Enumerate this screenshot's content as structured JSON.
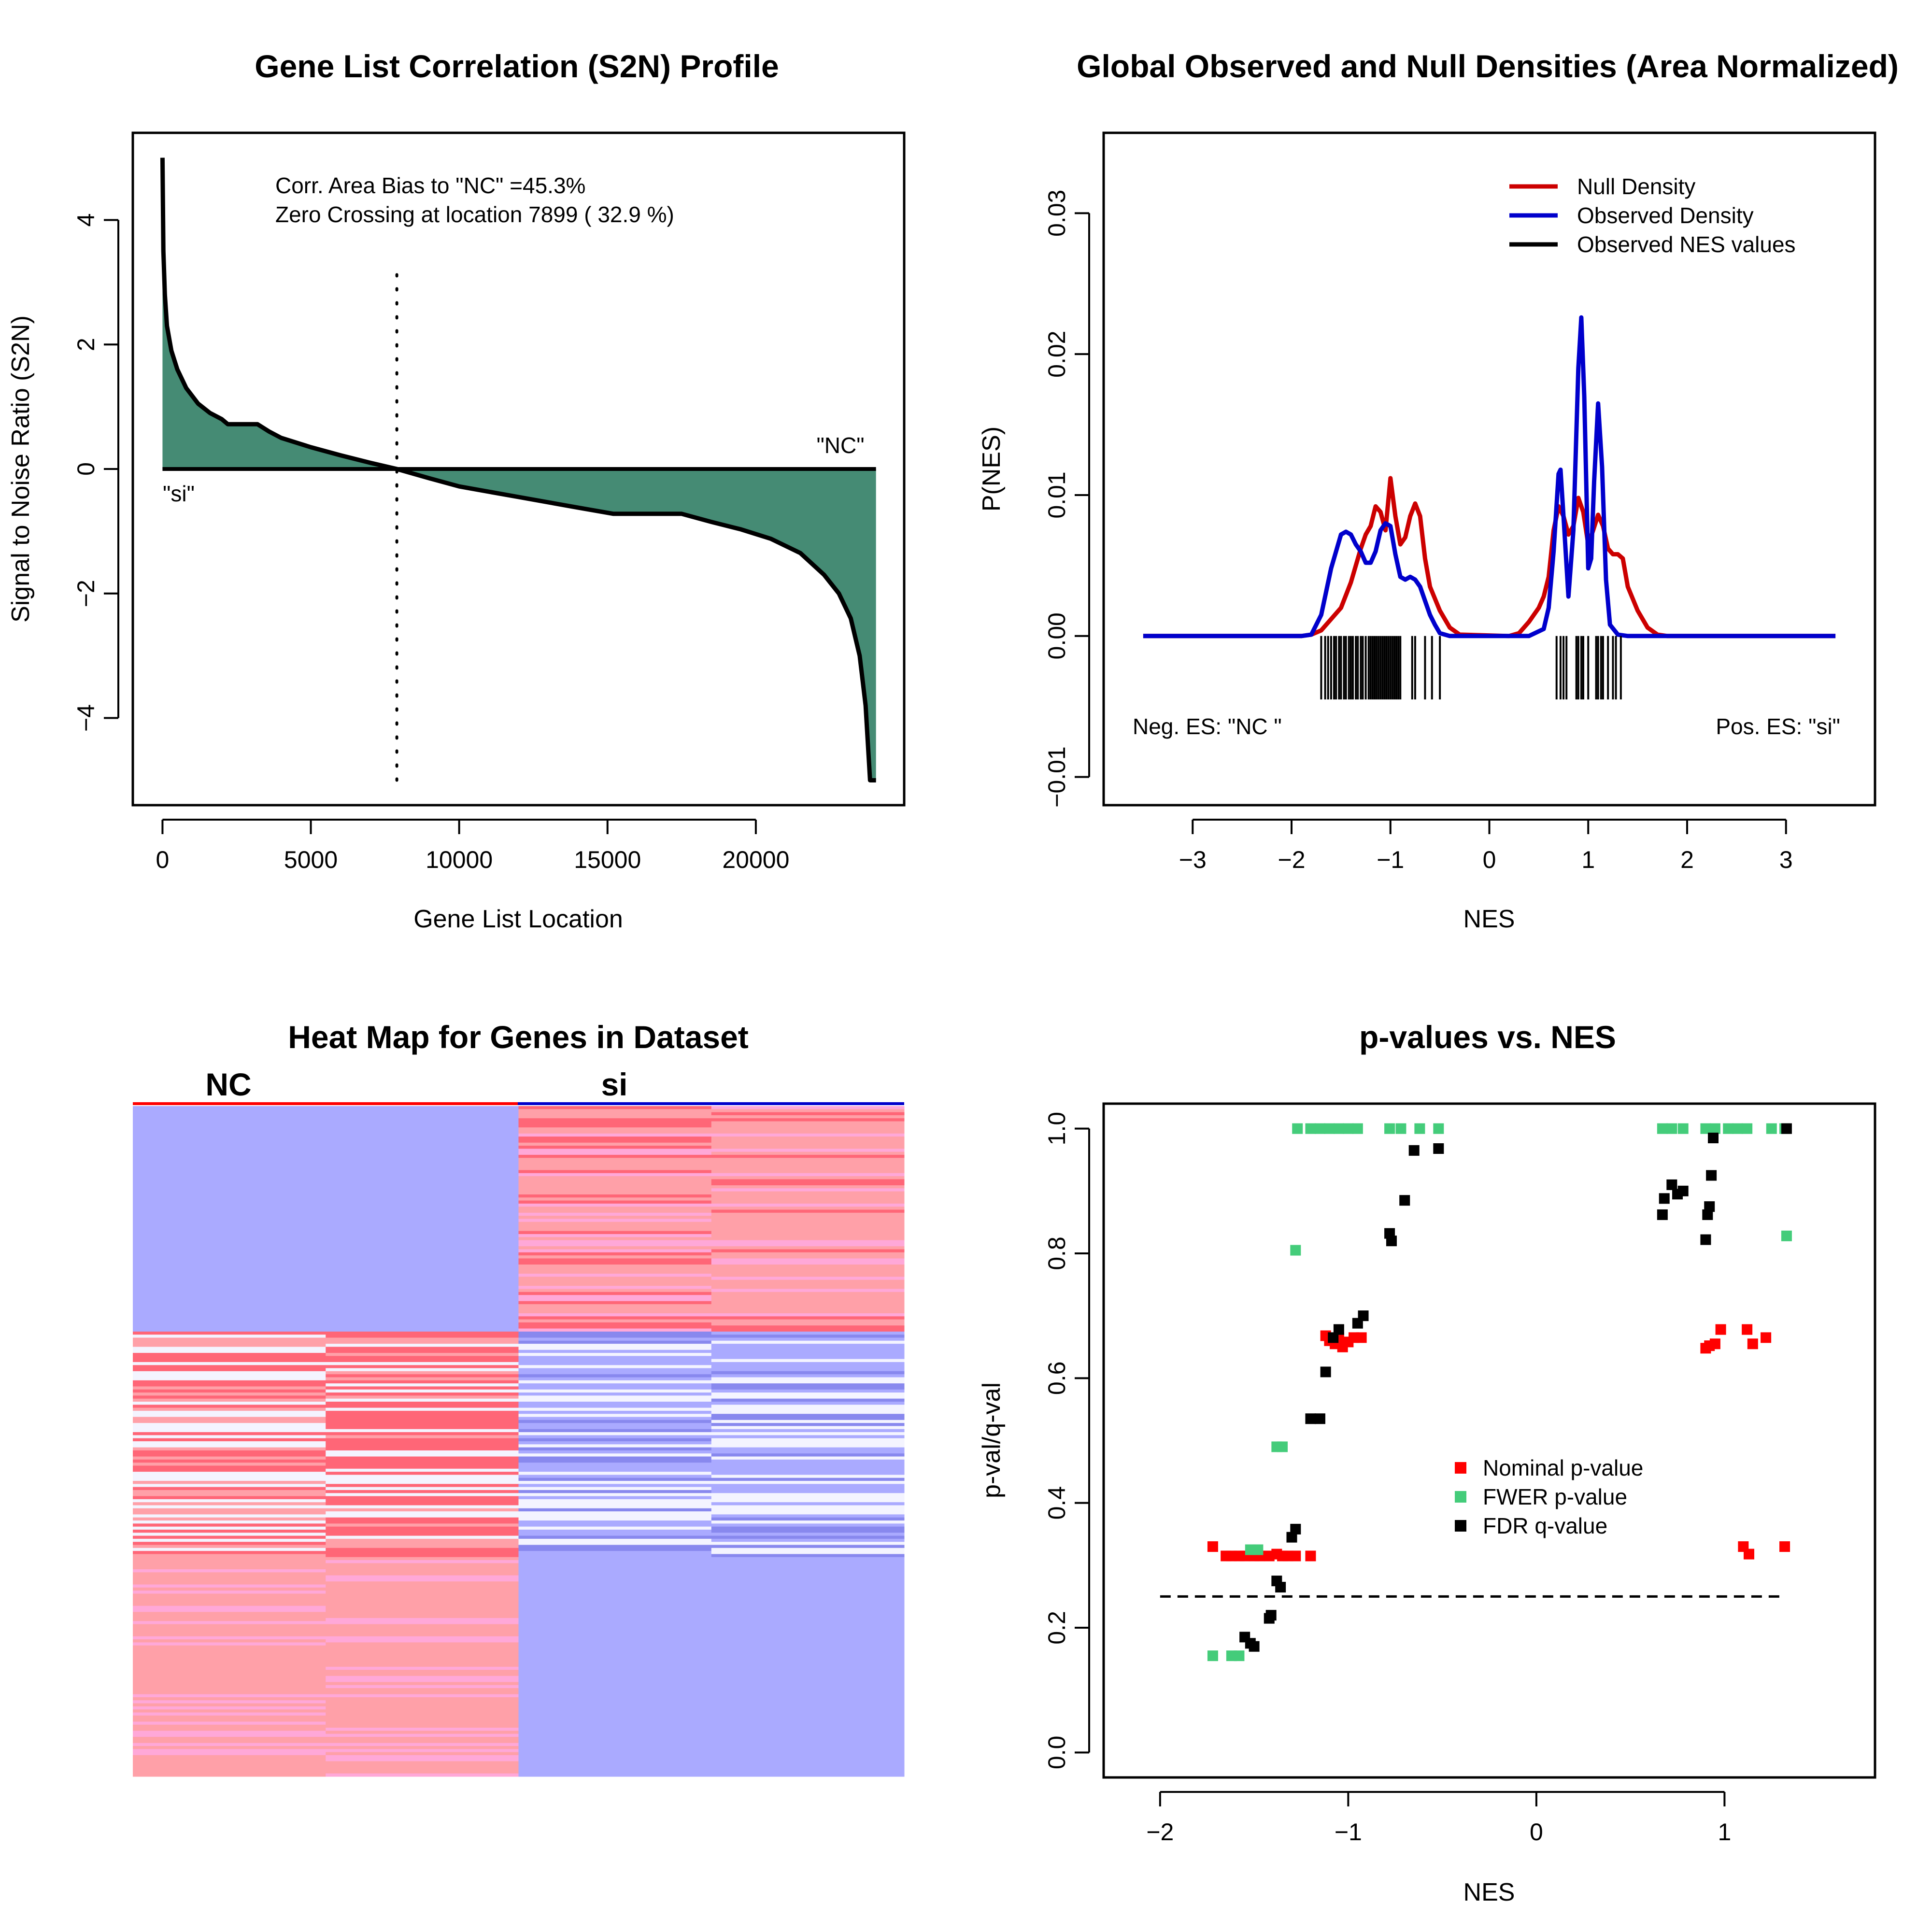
{
  "chart_data": [
    {
      "type": "area",
      "title": "Gene List Correlation (S2N) Profile",
      "xlabel": "Gene List Location",
      "ylabel": "Signal to Noise Ratio (S2N)",
      "xlim": [
        -1000,
        25000
      ],
      "ylim": [
        -5.4,
        5.4
      ],
      "xticks": [
        0,
        5000,
        10000,
        15000,
        20000
      ],
      "yticks": [
        -4,
        -2,
        0,
        2,
        4
      ],
      "annotations": [
        "Corr. Area Bias to \"NC\" =45.3%",
        "Zero Crossing at location  7899  ( 32.9  %)"
      ],
      "end_labels": {
        "left": "\"si\"",
        "right": "\"NC\""
      },
      "zero_crossing": 7899,
      "x": [
        0,
        30,
        80,
        150,
        300,
        500,
        800,
        1200,
        1600,
        2000,
        2200,
        2500,
        3000,
        3200,
        3600,
        4000,
        5000,
        6000,
        7000,
        7899,
        9000,
        10000,
        12000,
        14000,
        15200,
        16000,
        17500,
        18500,
        19500,
        20500,
        21500,
        22300,
        22800,
        23200,
        23500,
        23700,
        23800,
        23850,
        23900,
        24050
      ],
      "values": [
        5.0,
        3.5,
        2.8,
        2.3,
        1.9,
        1.6,
        1.3,
        1.05,
        0.9,
        0.8,
        0.72,
        0.72,
        0.72,
        0.72,
        0.6,
        0.5,
        0.35,
        0.22,
        0.1,
        0.0,
        -0.15,
        -0.28,
        -0.45,
        -0.62,
        -0.72,
        -0.72,
        -0.72,
        -0.85,
        -0.97,
        -1.12,
        -1.35,
        -1.7,
        -2.0,
        -2.4,
        -3.0,
        -3.8,
        -4.6,
        -5.0,
        -5.0,
        -5.0
      ],
      "fill_color": "#458b74"
    },
    {
      "type": "line",
      "title": "Global Observed and Null Densities (Area Normalized)",
      "xlabel": "NES",
      "ylabel": "P(NES)",
      "xlim": [
        -3.9,
        3.9
      ],
      "ylim": [
        -0.012,
        0.0357
      ],
      "xticks": [
        -3,
        -2,
        -1,
        0,
        1,
        2,
        3
      ],
      "yticks": [
        -0.01,
        0.0,
        0.01,
        0.02,
        0.03
      ],
      "legend": [
        "Null Density",
        "Observed Density",
        "Observed NES values"
      ],
      "legend_position": "top-right",
      "series": [
        {
          "name": "Null Density",
          "color": "#cc0000",
          "x": [
            -3.5,
            -1.9,
            -1.8,
            -1.7,
            -1.6,
            -1.5,
            -1.4,
            -1.3,
            -1.25,
            -1.2,
            -1.15,
            -1.1,
            -1.05,
            -1.0,
            -0.95,
            -0.9,
            -0.85,
            -0.8,
            -0.75,
            -0.7,
            -0.65,
            -0.6,
            -0.5,
            -0.4,
            -0.3,
            0.2,
            0.3,
            0.4,
            0.5,
            0.55,
            0.6,
            0.65,
            0.7,
            0.75,
            0.8,
            0.85,
            0.9,
            0.95,
            1.0,
            1.05,
            1.1,
            1.15,
            1.2,
            1.25,
            1.3,
            1.35,
            1.4,
            1.5,
            1.6,
            1.7,
            1.8,
            3.5
          ],
          "y": [
            0,
            0,
            0.0001,
            0.0004,
            0.0012,
            0.002,
            0.0038,
            0.0062,
            0.0072,
            0.0078,
            0.0092,
            0.0088,
            0.0075,
            0.0112,
            0.0085,
            0.0065,
            0.007,
            0.0085,
            0.0094,
            0.0085,
            0.0055,
            0.0035,
            0.0018,
            0.0006,
            0.0001,
            0,
            0.0002,
            0.001,
            0.002,
            0.0028,
            0.0042,
            0.0075,
            0.0092,
            0.0085,
            0.0072,
            0.0078,
            0.0098,
            0.0088,
            0.0065,
            0.0075,
            0.0086,
            0.0078,
            0.0062,
            0.0058,
            0.0058,
            0.0055,
            0.0035,
            0.0018,
            0.0006,
            0.0001,
            0,
            0
          ]
        },
        {
          "name": "Observed Density",
          "color": "#0000cc",
          "x": [
            -3.5,
            -1.9,
            -1.8,
            -1.7,
            -1.6,
            -1.5,
            -1.45,
            -1.4,
            -1.35,
            -1.3,
            -1.25,
            -1.2,
            -1.15,
            -1.1,
            -1.05,
            -1.0,
            -0.95,
            -0.9,
            -0.85,
            -0.8,
            -0.75,
            -0.7,
            -0.65,
            -0.6,
            -0.55,
            -0.5,
            -0.4,
            -0.3,
            0.4,
            0.55,
            0.6,
            0.65,
            0.7,
            0.72,
            0.75,
            0.8,
            0.85,
            0.9,
            0.93,
            0.96,
            1.0,
            1.03,
            1.06,
            1.1,
            1.14,
            1.18,
            1.22,
            1.3,
            1.4,
            1.5,
            3.5
          ],
          "y": [
            0,
            0,
            0.0001,
            0.0015,
            0.0048,
            0.0072,
            0.0074,
            0.0072,
            0.0065,
            0.006,
            0.0052,
            0.0052,
            0.006,
            0.0075,
            0.008,
            0.0078,
            0.0058,
            0.0042,
            0.004,
            0.0042,
            0.004,
            0.0035,
            0.0025,
            0.0015,
            0.0008,
            0.0002,
            0,
            0,
            0,
            0.0005,
            0.002,
            0.006,
            0.0115,
            0.0118,
            0.0085,
            0.0028,
            0.0075,
            0.019,
            0.0226,
            0.017,
            0.0048,
            0.0055,
            0.011,
            0.0165,
            0.012,
            0.004,
            0.0008,
            0.0001,
            0,
            0,
            0
          ]
        }
      ],
      "rug": [
        -1.7,
        -1.66,
        -1.63,
        -1.6,
        -1.57,
        -1.55,
        -1.52,
        -1.5,
        -1.47,
        -1.45,
        -1.42,
        -1.4,
        -1.38,
        -1.35,
        -1.33,
        -1.3,
        -1.28,
        -1.25,
        -1.22,
        -1.2,
        -1.18,
        -1.16,
        -1.14,
        -1.12,
        -1.1,
        -1.08,
        -1.06,
        -1.04,
        -1.02,
        -1.0,
        -0.98,
        -0.96,
        -0.94,
        -0.92,
        -0.9,
        -0.78,
        -0.75,
        -0.65,
        -0.58,
        -0.5,
        0.68,
        0.72,
        0.75,
        0.78,
        0.88,
        0.9,
        0.93,
        0.95,
        1.0,
        1.08,
        1.1,
        1.13,
        1.15,
        1.2,
        1.25,
        1.28,
        1.33
      ],
      "annotations": [
        "Neg. ES: \"NC \"",
        "Pos. ES: \"si\""
      ]
    },
    {
      "type": "heatmap",
      "title": "Heat Map for Genes in Dataset",
      "column_groups": [
        "NC",
        "si"
      ],
      "n_columns": 4,
      "colors": {
        "high": "#ff6677",
        "mid_high": "#ffa0a8",
        "pink": "#ffa8d8",
        "low": "#aaaaff",
        "white": "#f4f4ff"
      }
    },
    {
      "type": "scatter",
      "title": "p-values vs. NES",
      "xlabel": "NES",
      "ylabel": "p-val/q-val",
      "xlim": [
        -2.3,
        1.8
      ],
      "ylim": [
        -0.04,
        1.04
      ],
      "xticks": [
        -2,
        -1,
        0,
        1
      ],
      "yticks": [
        0.0,
        0.2,
        0.4,
        0.6,
        0.8,
        1.0
      ],
      "threshold": {
        "y": 0.25,
        "x_from": -2.0,
        "x_to": 1.32
      },
      "legend": [
        "Nominal p-value",
        "FWER p-value",
        "FDR q-value"
      ],
      "legend_position": "center-right",
      "series": [
        {
          "name": "Nominal p-value",
          "color": "#ff0000",
          "x": [
            -1.72,
            -1.65,
            -1.62,
            -1.58,
            -1.55,
            -1.5,
            -1.47,
            -1.42,
            -1.38,
            -1.35,
            -1.32,
            -1.28,
            -1.2,
            -1.12,
            -1.1,
            -1.07,
            -1.05,
            -1.03,
            -1.0,
            -0.97,
            -0.93,
            0.9,
            0.92,
            0.95,
            0.98,
            1.12,
            1.15,
            1.22,
            1.1,
            1.13,
            1.32
          ],
          "y": [
            0.33,
            0.315,
            0.315,
            0.315,
            0.315,
            0.315,
            0.315,
            0.315,
            0.318,
            0.315,
            0.315,
            0.315,
            0.315,
            0.668,
            0.66,
            0.655,
            0.665,
            0.65,
            0.658,
            0.665,
            0.665,
            0.648,
            0.652,
            0.655,
            0.678,
            0.678,
            0.655,
            0.665,
            0.33,
            0.318,
            0.33
          ]
        },
        {
          "name": "FWER p-value",
          "color": "#44cc7a",
          "x": [
            -1.72,
            -1.62,
            -1.58,
            -1.52,
            -1.48,
            -1.38,
            -1.35,
            -1.28,
            -1.27,
            -1.2,
            -1.15,
            -1.1,
            -1.05,
            -1.0,
            -0.95,
            -0.78,
            -0.72,
            -0.62,
            -0.52,
            0.67,
            0.72,
            0.78,
            0.9,
            0.95,
            1.02,
            1.07,
            1.12,
            1.25,
            1.32,
            1.33
          ],
          "y": [
            0.155,
            0.155,
            0.155,
            0.325,
            0.325,
            0.49,
            0.49,
            0.805,
            1.0,
            1.0,
            1.0,
            1.0,
            1.0,
            1.0,
            1.0,
            1.0,
            1.0,
            1.0,
            1.0,
            1.0,
            1.0,
            1.0,
            1.0,
            1.0,
            1.0,
            1.0,
            1.0,
            1.0,
            1.0,
            0.828
          ]
        },
        {
          "name": "FDR q-value",
          "color": "#000000",
          "x": [
            -1.55,
            -1.52,
            -1.5,
            -1.42,
            -1.41,
            -1.38,
            -1.36,
            -1.3,
            -1.28,
            -1.2,
            -1.15,
            -1.12,
            -1.08,
            -1.05,
            -0.95,
            -0.92,
            -0.78,
            -0.77,
            -0.7,
            -0.65,
            -0.52,
            0.67,
            0.68,
            0.72,
            0.75,
            0.78,
            0.9,
            0.91,
            0.92,
            0.93,
            0.94,
            1.33
          ],
          "y": [
            0.185,
            0.175,
            0.17,
            0.215,
            0.22,
            0.275,
            0.265,
            0.345,
            0.358,
            0.535,
            0.535,
            0.61,
            0.665,
            0.678,
            0.688,
            0.7,
            0.832,
            0.82,
            0.885,
            0.965,
            0.968,
            0.862,
            0.888,
            0.91,
            0.895,
            0.9,
            0.822,
            0.862,
            0.875,
            0.925,
            0.985,
            1.0
          ]
        }
      ]
    }
  ]
}
